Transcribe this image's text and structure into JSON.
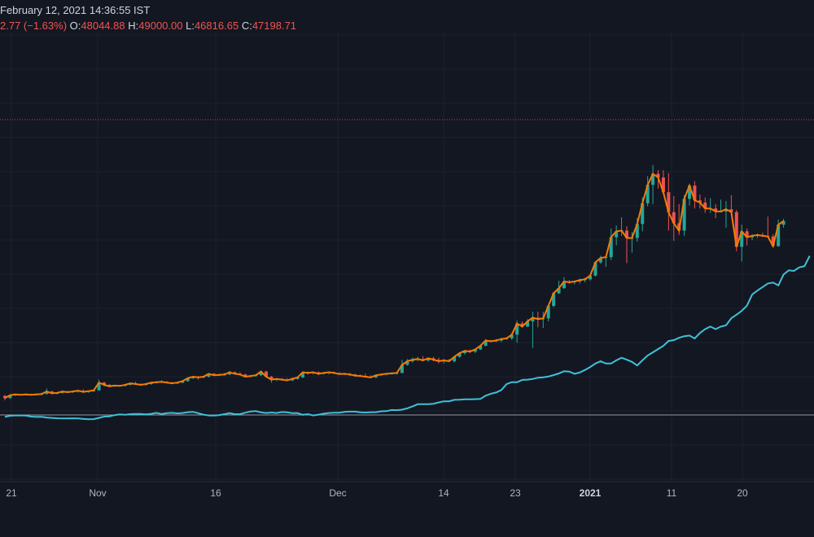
{
  "header": {
    "line1": "February 12, 2021 14:36:55 IST",
    "change": "2.77 (−1.63%)",
    "o_label": "O:",
    "o_value": "48044.88",
    "h_label": "H:",
    "h_value": "49000.00",
    "l_label": "L:",
    "l_value": "46816.65",
    "c_label": "C:",
    "c_value": "47198.71"
  },
  "colors": {
    "background": "#131722",
    "grid": "#1e222d",
    "up": "#26a69a",
    "down": "#ef5350",
    "price_line": "#f57c00",
    "indicator_line": "#3ec1d8",
    "baseline": "#9598a1",
    "reference_line": "#ef5350",
    "axis_text": "#b2b5be"
  },
  "chart_data": {
    "type": "candlestick",
    "x_axis_labels": [
      "21",
      "Nov",
      "16",
      "Dec",
      "14",
      "23",
      "2021",
      "11",
      "20"
    ],
    "x_axis_bold": [
      "2021"
    ],
    "ohlc": [
      {
        "o": 10600,
        "h": 10700,
        "l": 10000,
        "c": 10300
      },
      {
        "o": 10300,
        "h": 10800,
        "l": 10200,
        "c": 10700
      },
      {
        "o": 10700,
        "h": 10900,
        "l": 10600,
        "c": 10800
      },
      {
        "o": 10800,
        "h": 10850,
        "l": 10700,
        "c": 10750
      },
      {
        "o": 10750,
        "h": 10900,
        "l": 10700,
        "c": 10800
      },
      {
        "o": 10800,
        "h": 10900,
        "l": 10700,
        "c": 10750
      },
      {
        "o": 10750,
        "h": 10900,
        "l": 10700,
        "c": 10800
      },
      {
        "o": 10800,
        "h": 11000,
        "l": 10700,
        "c": 10850
      },
      {
        "o": 10850,
        "h": 11600,
        "l": 10800,
        "c": 11200
      },
      {
        "o": 11200,
        "h": 11300,
        "l": 10800,
        "c": 10950
      },
      {
        "o": 10950,
        "h": 11100,
        "l": 10800,
        "c": 11000
      },
      {
        "o": 11000,
        "h": 11300,
        "l": 10900,
        "c": 11200
      },
      {
        "o": 11200,
        "h": 11300,
        "l": 11000,
        "c": 11100
      },
      {
        "o": 11100,
        "h": 11300,
        "l": 11000,
        "c": 11200
      },
      {
        "o": 11200,
        "h": 11400,
        "l": 11050,
        "c": 11300
      },
      {
        "o": 11300,
        "h": 11500,
        "l": 11000,
        "c": 11150
      },
      {
        "o": 11150,
        "h": 11300,
        "l": 11000,
        "c": 11250
      },
      {
        "o": 11250,
        "h": 11400,
        "l": 11150,
        "c": 11350
      },
      {
        "o": 11350,
        "h": 12800,
        "l": 11300,
        "c": 12400
      },
      {
        "o": 12400,
        "h": 12500,
        "l": 11900,
        "c": 12100
      },
      {
        "o": 12100,
        "h": 12200,
        "l": 11800,
        "c": 11900
      },
      {
        "o": 11900,
        "h": 12100,
        "l": 11800,
        "c": 12000
      },
      {
        "o": 12000,
        "h": 12100,
        "l": 11900,
        "c": 11950
      },
      {
        "o": 11950,
        "h": 12200,
        "l": 11900,
        "c": 12100
      },
      {
        "o": 12100,
        "h": 12400,
        "l": 12000,
        "c": 12300
      },
      {
        "o": 12300,
        "h": 12500,
        "l": 12100,
        "c": 12200
      },
      {
        "o": 12200,
        "h": 12300,
        "l": 12000,
        "c": 12100
      },
      {
        "o": 12100,
        "h": 12300,
        "l": 12000,
        "c": 12200
      },
      {
        "o": 12200,
        "h": 12500,
        "l": 12100,
        "c": 12400
      },
      {
        "o": 12400,
        "h": 12600,
        "l": 12300,
        "c": 12450
      },
      {
        "o": 12450,
        "h": 12700,
        "l": 12350,
        "c": 12500
      },
      {
        "o": 12500,
        "h": 12600,
        "l": 12300,
        "c": 12400
      },
      {
        "o": 12400,
        "h": 12500,
        "l": 12200,
        "c": 12300
      },
      {
        "o": 12300,
        "h": 12500,
        "l": 12200,
        "c": 12400
      },
      {
        "o": 12400,
        "h": 12700,
        "l": 12300,
        "c": 12600
      },
      {
        "o": 12600,
        "h": 13100,
        "l": 12500,
        "c": 13000
      },
      {
        "o": 13000,
        "h": 13300,
        "l": 12900,
        "c": 13200
      },
      {
        "o": 13200,
        "h": 13300,
        "l": 12800,
        "c": 13100
      },
      {
        "o": 13100,
        "h": 13300,
        "l": 13000,
        "c": 13200
      },
      {
        "o": 13200,
        "h": 13700,
        "l": 13100,
        "c": 13600
      },
      {
        "o": 13600,
        "h": 13700,
        "l": 13300,
        "c": 13400
      },
      {
        "o": 13400,
        "h": 13600,
        "l": 13300,
        "c": 13450
      },
      {
        "o": 13450,
        "h": 13700,
        "l": 13350,
        "c": 13500
      },
      {
        "o": 13500,
        "h": 14000,
        "l": 13400,
        "c": 13800
      },
      {
        "o": 13800,
        "h": 13900,
        "l": 13500,
        "c": 13600
      },
      {
        "o": 13600,
        "h": 13800,
        "l": 13400,
        "c": 13500
      },
      {
        "o": 13500,
        "h": 13600,
        "l": 13100,
        "c": 13200
      },
      {
        "o": 13200,
        "h": 13400,
        "l": 13100,
        "c": 13300
      },
      {
        "o": 13300,
        "h": 13500,
        "l": 13200,
        "c": 13400
      },
      {
        "o": 13400,
        "h": 14000,
        "l": 13300,
        "c": 13900
      },
      {
        "o": 13900,
        "h": 14000,
        "l": 13300,
        "c": 13200
      },
      {
        "o": 13200,
        "h": 13300,
        "l": 12400,
        "c": 12800
      },
      {
        "o": 12800,
        "h": 13000,
        "l": 12600,
        "c": 12900
      },
      {
        "o": 12900,
        "h": 13000,
        "l": 12700,
        "c": 12800
      },
      {
        "o": 12800,
        "h": 13000,
        "l": 12600,
        "c": 12700
      },
      {
        "o": 12700,
        "h": 13100,
        "l": 12600,
        "c": 12900
      },
      {
        "o": 12900,
        "h": 13200,
        "l": 12800,
        "c": 13100
      },
      {
        "o": 13100,
        "h": 13900,
        "l": 13000,
        "c": 13800
      },
      {
        "o": 13800,
        "h": 13900,
        "l": 13500,
        "c": 13700
      },
      {
        "o": 13700,
        "h": 13900,
        "l": 13500,
        "c": 13800
      },
      {
        "o": 13800,
        "h": 13900,
        "l": 13400,
        "c": 13600
      },
      {
        "o": 13600,
        "h": 13800,
        "l": 13500,
        "c": 13700
      },
      {
        "o": 13700,
        "h": 13900,
        "l": 13500,
        "c": 13800
      },
      {
        "o": 13800,
        "h": 13900,
        "l": 13600,
        "c": 13700
      },
      {
        "o": 13700,
        "h": 13800,
        "l": 13500,
        "c": 13550
      },
      {
        "o": 13550,
        "h": 13700,
        "l": 13400,
        "c": 13600
      },
      {
        "o": 13600,
        "h": 13700,
        "l": 13300,
        "c": 13500
      },
      {
        "o": 13500,
        "h": 13600,
        "l": 13200,
        "c": 13350
      },
      {
        "o": 13350,
        "h": 13500,
        "l": 13200,
        "c": 13300
      },
      {
        "o": 13300,
        "h": 13600,
        "l": 13100,
        "c": 13200
      },
      {
        "o": 13200,
        "h": 13400,
        "l": 13000,
        "c": 13100
      },
      {
        "o": 13100,
        "h": 13500,
        "l": 13000,
        "c": 13400
      },
      {
        "o": 13400,
        "h": 13600,
        "l": 13300,
        "c": 13500
      },
      {
        "o": 13500,
        "h": 13700,
        "l": 13400,
        "c": 13600
      },
      {
        "o": 13600,
        "h": 13800,
        "l": 13500,
        "c": 13650
      },
      {
        "o": 13650,
        "h": 13800,
        "l": 13500,
        "c": 13700
      },
      {
        "o": 13700,
        "h": 15500,
        "l": 13700,
        "c": 14800
      },
      {
        "o": 14800,
        "h": 15600,
        "l": 14700,
        "c": 15300
      },
      {
        "o": 15300,
        "h": 15800,
        "l": 15100,
        "c": 15500
      },
      {
        "o": 15500,
        "h": 15900,
        "l": 15300,
        "c": 15600
      },
      {
        "o": 15600,
        "h": 16000,
        "l": 15300,
        "c": 15400
      },
      {
        "o": 15400,
        "h": 15800,
        "l": 15200,
        "c": 15700
      },
      {
        "o": 15700,
        "h": 15900,
        "l": 15300,
        "c": 15500
      },
      {
        "o": 15500,
        "h": 15800,
        "l": 15000,
        "c": 15300
      },
      {
        "o": 15300,
        "h": 15600,
        "l": 15000,
        "c": 15400
      },
      {
        "o": 15400,
        "h": 15600,
        "l": 15200,
        "c": 15300
      },
      {
        "o": 15300,
        "h": 16000,
        "l": 15100,
        "c": 15900
      },
      {
        "o": 15900,
        "h": 16500,
        "l": 15800,
        "c": 16400
      },
      {
        "o": 16400,
        "h": 16800,
        "l": 16200,
        "c": 16700
      },
      {
        "o": 16700,
        "h": 16900,
        "l": 16400,
        "c": 16600
      },
      {
        "o": 16600,
        "h": 17000,
        "l": 16400,
        "c": 16900
      },
      {
        "o": 16900,
        "h": 17500,
        "l": 16800,
        "c": 17400
      },
      {
        "o": 17400,
        "h": 18300,
        "l": 17300,
        "c": 18100
      },
      {
        "o": 18100,
        "h": 18200,
        "l": 17900,
        "c": 18000
      },
      {
        "o": 18000,
        "h": 18300,
        "l": 17900,
        "c": 18100
      },
      {
        "o": 18100,
        "h": 18500,
        "l": 17900,
        "c": 18300
      },
      {
        "o": 18300,
        "h": 18500,
        "l": 18200,
        "c": 18400
      },
      {
        "o": 18400,
        "h": 19100,
        "l": 18200,
        "c": 18900
      },
      {
        "o": 18900,
        "h": 20800,
        "l": 17800,
        "c": 20400
      },
      {
        "o": 20400,
        "h": 20700,
        "l": 19800,
        "c": 20000
      },
      {
        "o": 20000,
        "h": 21000,
        "l": 19900,
        "c": 20700
      },
      {
        "o": 20700,
        "h": 22000,
        "l": 17100,
        "c": 21200
      },
      {
        "o": 21200,
        "h": 22000,
        "l": 19900,
        "c": 21000
      },
      {
        "o": 21000,
        "h": 22000,
        "l": 19800,
        "c": 21100
      },
      {
        "o": 21100,
        "h": 22900,
        "l": 20700,
        "c": 22800
      },
      {
        "o": 22800,
        "h": 24700,
        "l": 22600,
        "c": 24500
      },
      {
        "o": 24500,
        "h": 26200,
        "l": 24400,
        "c": 25200
      },
      {
        "o": 25200,
        "h": 26700,
        "l": 25100,
        "c": 26100
      },
      {
        "o": 26100,
        "h": 26300,
        "l": 25800,
        "c": 26000
      },
      {
        "o": 26000,
        "h": 26200,
        "l": 25700,
        "c": 26100
      },
      {
        "o": 26100,
        "h": 26500,
        "l": 25800,
        "c": 26300
      },
      {
        "o": 26300,
        "h": 26600,
        "l": 26000,
        "c": 26400
      },
      {
        "o": 26400,
        "h": 27000,
        "l": 26200,
        "c": 26900
      },
      {
        "o": 26900,
        "h": 28800,
        "l": 26800,
        "c": 28700
      },
      {
        "o": 28700,
        "h": 29600,
        "l": 28500,
        "c": 29300
      },
      {
        "o": 29300,
        "h": 29600,
        "l": 28100,
        "c": 29400
      },
      {
        "o": 29400,
        "h": 33300,
        "l": 29000,
        "c": 32100
      },
      {
        "o": 32100,
        "h": 33700,
        "l": 31000,
        "c": 32900
      },
      {
        "o": 32900,
        "h": 34800,
        "l": 32300,
        "c": 33000
      },
      {
        "o": 33000,
        "h": 33600,
        "l": 28600,
        "c": 32000
      },
      {
        "o": 32000,
        "h": 32800,
        "l": 30000,
        "c": 32000
      },
      {
        "o": 32000,
        "h": 34700,
        "l": 31500,
        "c": 33900
      },
      {
        "o": 33900,
        "h": 37500,
        "l": 32900,
        "c": 36700
      },
      {
        "o": 36700,
        "h": 40400,
        "l": 36300,
        "c": 39200
      },
      {
        "o": 39200,
        "h": 41900,
        "l": 36600,
        "c": 40700
      },
      {
        "o": 40700,
        "h": 41200,
        "l": 38700,
        "c": 40200
      },
      {
        "o": 40200,
        "h": 41200,
        "l": 38000,
        "c": 38200
      },
      {
        "o": 38200,
        "h": 40800,
        "l": 33000,
        "c": 35500
      },
      {
        "o": 35500,
        "h": 37700,
        "l": 31600,
        "c": 34000
      },
      {
        "o": 34000,
        "h": 36600,
        "l": 32400,
        "c": 33000
      },
      {
        "o": 33000,
        "h": 37800,
        "l": 32300,
        "c": 37300
      },
      {
        "o": 37300,
        "h": 39200,
        "l": 36400,
        "c": 39100
      },
      {
        "o": 39100,
        "h": 39700,
        "l": 36000,
        "c": 37100
      },
      {
        "o": 37100,
        "h": 37900,
        "l": 36000,
        "c": 36800
      },
      {
        "o": 36800,
        "h": 37500,
        "l": 35400,
        "c": 36000
      },
      {
        "o": 36000,
        "h": 37400,
        "l": 35400,
        "c": 36000
      },
      {
        "o": 36000,
        "h": 36600,
        "l": 34700,
        "c": 35600
      },
      {
        "o": 35600,
        "h": 37200,
        "l": 35500,
        "c": 35600
      },
      {
        "o": 35600,
        "h": 37000,
        "l": 33400,
        "c": 35900
      },
      {
        "o": 35900,
        "h": 37800,
        "l": 35800,
        "c": 35500
      },
      {
        "o": 35500,
        "h": 35800,
        "l": 30200,
        "c": 30800
      },
      {
        "o": 30800,
        "h": 33800,
        "l": 28800,
        "c": 32900
      },
      {
        "o": 32900,
        "h": 33300,
        "l": 31000,
        "c": 32100
      },
      {
        "o": 32100,
        "h": 32500,
        "l": 31700,
        "c": 32300
      },
      {
        "o": 32300,
        "h": 32600,
        "l": 32000,
        "c": 32400
      },
      {
        "o": 32400,
        "h": 32700,
        "l": 32100,
        "c": 32300
      },
      {
        "o": 32300,
        "h": 34900,
        "l": 32100,
        "c": 32200
      },
      {
        "o": 32200,
        "h": 32500,
        "l": 30800,
        "c": 30900
      },
      {
        "o": 30900,
        "h": 34500,
        "l": 30800,
        "c": 33800
      },
      {
        "o": 33800,
        "h": 34600,
        "l": 33400,
        "c": 34300
      }
    ],
    "indicator": [
      -0.6,
      -0.25,
      -0.15,
      -0.15,
      -0.2,
      -0.5,
      -0.6,
      -0.55,
      -0.8,
      -0.9,
      -1.05,
      -1.1,
      -1.1,
      -1.05,
      -1.1,
      -1.25,
      -1.35,
      -1.3,
      -0.9,
      -0.5,
      -0.45,
      -0.05,
      0.2,
      0.05,
      0.25,
      0.3,
      0.3,
      0.2,
      0.35,
      0.65,
      0.3,
      0.55,
      0.65,
      0.5,
      0.6,
      0.85,
      0.95,
      0.55,
      0.1,
      -0.15,
      -0.2,
      -0.05,
      0.25,
      0.55,
      0.25,
      0.25,
      0.7,
      1.1,
      1.2,
      0.8,
      0.6,
      0.75,
      0.6,
      0.9,
      0.8,
      0.55,
      0.6,
      0.05,
      0.25,
      -0.15,
      0.1,
      0.4,
      0.6,
      0.7,
      0.7,
      0.95,
      1.05,
      1.05,
      0.8,
      0.75,
      0.85,
      0.85,
      1.15,
      1.2,
      1.55,
      1.5,
      1.65,
      2.05,
      2.65,
      3.35,
      3.35,
      3.35,
      3.5,
      3.9,
      4.25,
      4.25,
      4.7,
      4.75,
      4.85,
      4.85,
      4.9,
      5.0,
      6.0,
      6.6,
      7.0,
      7.75,
      9.6,
      10.2,
      10.2,
      10.9,
      11.0,
      11.2,
      11.6,
      11.7,
      11.95,
      12.4,
      12.9,
      13.6,
      13.5,
      12.8,
      13.2,
      14.0,
      14.9,
      16.0,
      16.7,
      16.0,
      16.0,
      17.0,
      17.8,
      17.2,
      16.5,
      15.4,
      17.0,
      18.5,
      19.5,
      20.5,
      21.5,
      23.0,
      23.3,
      24.0,
      24.5,
      24.7,
      23.8,
      25.5,
      26.7,
      27.5,
      26.7,
      27.5,
      27.9,
      30.1,
      31.2,
      32.4,
      34.0,
      37.5,
      38.7,
      39.8,
      40.9,
      41.2,
      40.3,
      43.7,
      45.0,
      44.8,
      45.9,
      46.3,
      49.5
    ],
    "indicator_baseline": 0,
    "reference_price": 48044.88
  }
}
